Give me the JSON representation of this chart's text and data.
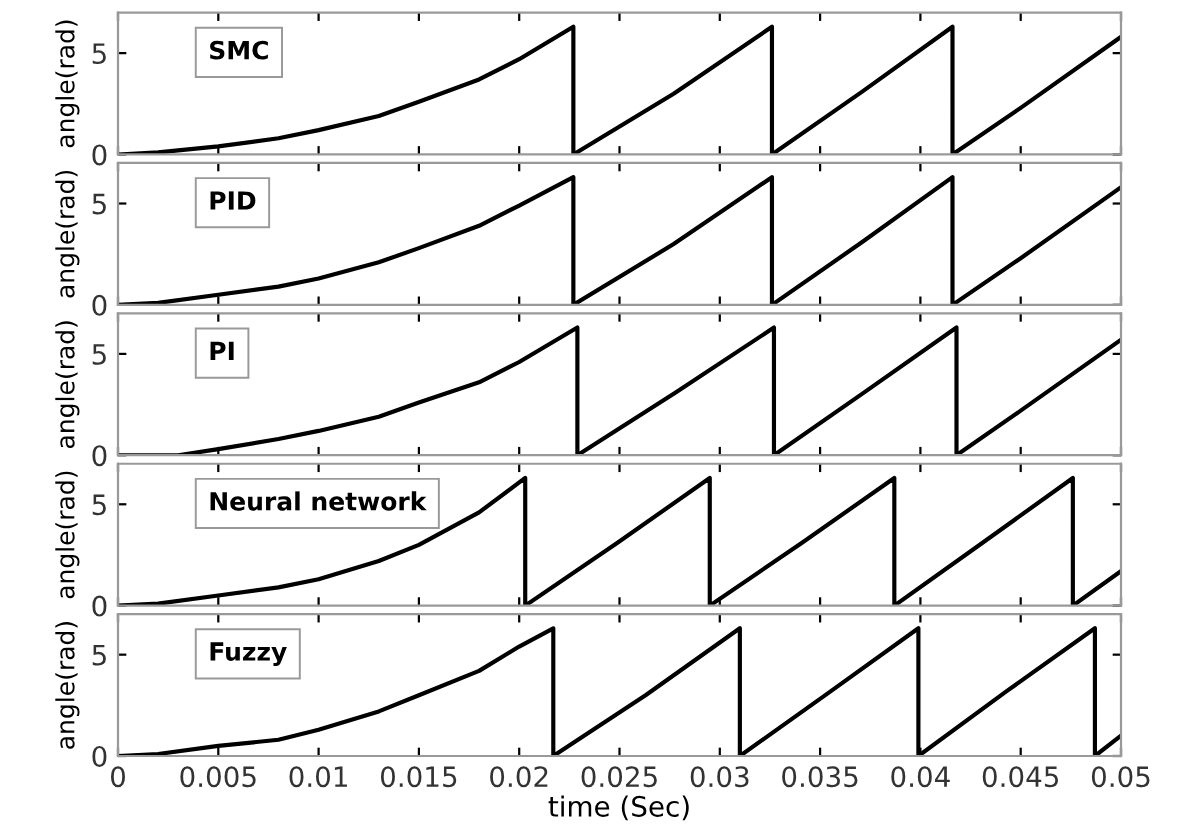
{
  "chart_data": [
    {
      "type": "line",
      "ylabel": "angle(rad)",
      "annotations": [
        "SMC"
      ],
      "xlim": [
        0,
        0.05
      ],
      "xticks": [
        0,
        0.005,
        0.01,
        0.015,
        0.02,
        0.025,
        0.03,
        0.035,
        0.04,
        0.045,
        0.05
      ],
      "ylim": [
        0,
        7
      ],
      "yticks": [
        0,
        5
      ],
      "tick_labels": "y",
      "series": [
        {
          "color": "#000000",
          "x": [
            0,
            0.002,
            0.005,
            0.008,
            0.01,
            0.013,
            0.015,
            0.018,
            0.02,
            0.0227,
            0.0227,
            0.0277,
            0.0326,
            0.0326,
            0.0371,
            0.0416,
            0.0416,
            0.045,
            0.05
          ],
          "values": [
            0,
            0.1,
            0.4,
            0.8,
            1.2,
            1.9,
            2.6,
            3.7,
            4.7,
            6.3,
            0,
            3.0,
            6.3,
            0,
            3.1,
            6.3,
            0,
            2.3,
            5.8
          ]
        }
      ]
    },
    {
      "type": "line",
      "ylabel": "angle(rad)",
      "annotations": [
        "PID"
      ],
      "xlim": [
        0,
        0.05
      ],
      "xticks": [
        0,
        0.005,
        0.01,
        0.015,
        0.02,
        0.025,
        0.03,
        0.035,
        0.04,
        0.045,
        0.05
      ],
      "ylim": [
        0,
        7
      ],
      "yticks": [
        0,
        5
      ],
      "tick_labels": "y",
      "series": [
        {
          "color": "#000000",
          "x": [
            0,
            0.002,
            0.005,
            0.008,
            0.01,
            0.013,
            0.015,
            0.018,
            0.02,
            0.0227,
            0.0227,
            0.0277,
            0.0326,
            0.0326,
            0.0371,
            0.0416,
            0.0416,
            0.045,
            0.05
          ],
          "values": [
            0,
            0.1,
            0.5,
            0.9,
            1.3,
            2.1,
            2.8,
            3.9,
            4.9,
            6.3,
            0,
            3.0,
            6.3,
            0,
            3.1,
            6.3,
            0,
            2.3,
            5.8
          ]
        }
      ]
    },
    {
      "type": "line",
      "ylabel": "angle(rad)",
      "annotations": [
        "PI"
      ],
      "xlim": [
        0,
        0.05
      ],
      "xticks": [
        0,
        0.005,
        0.01,
        0.015,
        0.02,
        0.025,
        0.03,
        0.035,
        0.04,
        0.045,
        0.05
      ],
      "ylim": [
        0,
        7
      ],
      "yticks": [
        0,
        5
      ],
      "tick_labels": "y",
      "series": [
        {
          "color": "#000000",
          "x": [
            0,
            0.003,
            0.005,
            0.008,
            0.01,
            0.013,
            0.015,
            0.018,
            0.02,
            0.0229,
            0.0229,
            0.0278,
            0.0327,
            0.0327,
            0.0372,
            0.0418,
            0.0418,
            0.045,
            0.05
          ],
          "values": [
            0,
            0,
            0.3,
            0.8,
            1.2,
            1.9,
            2.6,
            3.6,
            4.6,
            6.3,
            0,
            3.1,
            6.3,
            0,
            3.1,
            6.3,
            0,
            2.2,
            5.7
          ]
        }
      ]
    },
    {
      "type": "line",
      "ylabel": "angle(rad)",
      "annotations": [
        "Neural network"
      ],
      "xlim": [
        0,
        0.05
      ],
      "xticks": [
        0,
        0.005,
        0.01,
        0.015,
        0.02,
        0.025,
        0.03,
        0.035,
        0.04,
        0.045,
        0.05
      ],
      "ylim": [
        0,
        7
      ],
      "yticks": [
        0,
        5
      ],
      "tick_labels": "y",
      "series": [
        {
          "color": "#000000",
          "x": [
            0,
            0.002,
            0.005,
            0.008,
            0.01,
            0.013,
            0.015,
            0.018,
            0.0203,
            0.0203,
            0.0249,
            0.0295,
            0.0295,
            0.0341,
            0.0387,
            0.0387,
            0.0431,
            0.0476,
            0.0476,
            0.05
          ],
          "values": [
            0,
            0.1,
            0.5,
            0.9,
            1.3,
            2.2,
            3.0,
            4.6,
            6.3,
            0,
            3.1,
            6.3,
            0,
            3.1,
            6.3,
            0,
            3.1,
            6.3,
            0,
            1.7
          ]
        }
      ]
    },
    {
      "type": "line",
      "ylabel": "angle(rad)",
      "xlabel": "time (Sec)",
      "annotations": [
        "Fuzzy"
      ],
      "xlim": [
        0,
        0.05
      ],
      "xticks": [
        0,
        0.005,
        0.01,
        0.015,
        0.02,
        0.025,
        0.03,
        0.035,
        0.04,
        0.045,
        0.05
      ],
      "ylim": [
        0,
        7
      ],
      "yticks": [
        0,
        5
      ],
      "series": [
        {
          "color": "#000000",
          "x": [
            0,
            0.002,
            0.005,
            0.008,
            0.01,
            0.013,
            0.015,
            0.018,
            0.02,
            0.0217,
            0.0217,
            0.0263,
            0.031,
            0.031,
            0.0354,
            0.0399,
            0.0399,
            0.0443,
            0.0487,
            0.0487,
            0.05
          ],
          "values": [
            0,
            0.1,
            0.5,
            0.8,
            1.3,
            2.2,
            3.0,
            4.2,
            5.4,
            6.3,
            0,
            3.0,
            6.3,
            0,
            3.1,
            6.3,
            0,
            3.2,
            6.3,
            0,
            1.0
          ]
        }
      ]
    }
  ]
}
